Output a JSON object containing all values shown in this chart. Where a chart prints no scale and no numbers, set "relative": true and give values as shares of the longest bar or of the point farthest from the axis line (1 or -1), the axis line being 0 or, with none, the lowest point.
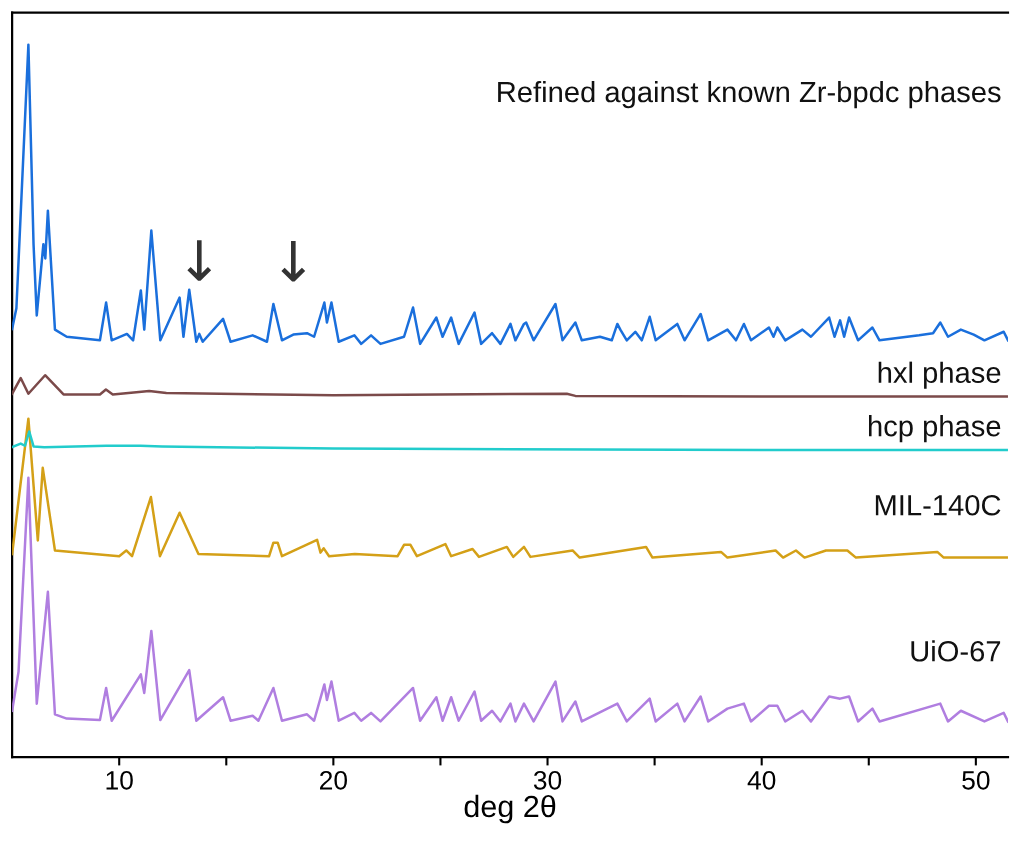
{
  "chart_data": {
    "type": "line",
    "relative": true,
    "title": "Refined against known Zr-bpdc phases",
    "xlabel": "deg 2θ",
    "xlim": [
      5.0,
      51.5
    ],
    "xticks": [
      10,
      {
        "value": 15,
        "label": null
      },
      20,
      {
        "value": 25,
        "label": null
      },
      30,
      {
        "value": 35,
        "label": null
      },
      40,
      {
        "value": 45,
        "label": null
      },
      50
    ],
    "tick_labels": "x",
    "grid": false,
    "legend": false,
    "marker": "none",
    "line_style": "solid",
    "annotations": [
      {
        "text": "↓",
        "x": 13.74,
        "y": 0.594
      },
      {
        "text": "↓",
        "x": 18.13,
        "y": 0.593
      }
    ],
    "series": [
      {
        "color": "#1a6fdc",
        "x": [
          5.0,
          5.2,
          5.76,
          6.0,
          6.15,
          6.46,
          6.55,
          6.67,
          7.0,
          7.55,
          9.1,
          9.39,
          9.65,
          10.36,
          10.65,
          11.01,
          11.17,
          11.5,
          11.92,
          12.82,
          13.0,
          13.27,
          13.6,
          13.74,
          13.9,
          14.85,
          15.2,
          16.23,
          16.9,
          17.2,
          17.6,
          18.13,
          18.77,
          19.1,
          19.58,
          19.7,
          19.91,
          20.25,
          20.98,
          21.3,
          21.76,
          22.2,
          23.3,
          23.72,
          24.05,
          24.81,
          25.1,
          25.5,
          25.85,
          26.59,
          26.9,
          27.41,
          27.8,
          28.27,
          28.5,
          28.9,
          29.0,
          29.35,
          30.37,
          30.7,
          31.3,
          31.6,
          32.45,
          33.0,
          33.26,
          33.4,
          33.7,
          34.1,
          34.4,
          34.77,
          35.05,
          36.06,
          36.4,
          37.15,
          37.5,
          38.4,
          38.8,
          39.17,
          39.5,
          40.34,
          40.55,
          40.73,
          41.1,
          41.9,
          42.3,
          43.15,
          43.4,
          43.66,
          43.85,
          44.08,
          44.5,
          45.17,
          45.5,
          47.35,
          48.0,
          48.34,
          48.7,
          49.3,
          49.9,
          50.4,
          51.3,
          51.5
        ],
        "values": [
          0.601,
          0.63,
          1.0,
          0.72,
          0.62,
          0.72,
          0.7,
          0.767,
          0.6,
          0.59,
          0.585,
          0.638,
          0.585,
          0.594,
          0.585,
          0.655,
          0.6,
          0.739,
          0.585,
          0.645,
          0.59,
          0.656,
          0.583,
          0.594,
          0.583,
          0.615,
          0.583,
          0.592,
          0.583,
          0.636,
          0.585,
          0.593,
          0.595,
          0.59,
          0.638,
          0.61,
          0.638,
          0.583,
          0.592,
          0.58,
          0.592,
          0.58,
          0.59,
          0.631,
          0.58,
          0.617,
          0.59,
          0.617,
          0.58,
          0.624,
          0.58,
          0.595,
          0.58,
          0.608,
          0.585,
          0.608,
          0.61,
          0.585,
          0.636,
          0.585,
          0.61,
          0.585,
          0.59,
          0.585,
          0.608,
          0.6,
          0.585,
          0.597,
          0.585,
          0.618,
          0.585,
          0.608,
          0.585,
          0.622,
          0.585,
          0.6,
          0.585,
          0.608,
          0.585,
          0.603,
          0.59,
          0.603,
          0.585,
          0.6,
          0.59,
          0.617,
          0.59,
          0.613,
          0.59,
          0.617,
          0.585,
          0.603,
          0.585,
          0.592,
          0.595,
          0.61,
          0.59,
          0.6,
          0.593,
          0.585,
          0.597,
          0.585
        ]
      },
      {
        "name": "hxl phase",
        "color": "#7b4a4a",
        "x": [
          5.0,
          5.4,
          5.76,
          6.54,
          7.4,
          9.1,
          9.38,
          9.7,
          10.8,
          11.4,
          12.2,
          20.0,
          30.9,
          31.3,
          40.0,
          51.5
        ],
        "values": [
          0.51,
          0.532,
          0.51,
          0.536,
          0.509,
          0.509,
          0.516,
          0.509,
          0.512,
          0.514,
          0.511,
          0.508,
          0.51,
          0.507,
          0.506,
          0.506
        ]
      },
      {
        "name": "hcp phase",
        "color": "#22cccc",
        "x": [
          5.0,
          5.4,
          5.6,
          5.8,
          6.0,
          6.5,
          9.4,
          11.0,
          12.0,
          20.0,
          40.0,
          51.5
        ],
        "values": [
          0.435,
          0.44,
          0.437,
          0.457,
          0.436,
          0.435,
          0.437,
          0.437,
          0.436,
          0.433,
          0.431,
          0.431
        ]
      },
      {
        "name": "MIL-140C",
        "color": "#d4a017",
        "x": [
          5.0,
          5.76,
          6.2,
          6.43,
          7.0,
          10.0,
          10.33,
          10.6,
          11.48,
          11.9,
          12.82,
          13.7,
          17.0,
          17.2,
          17.4,
          17.6,
          19.24,
          19.4,
          19.55,
          19.8,
          21.0,
          23.0,
          23.3,
          23.6,
          23.9,
          25.23,
          25.5,
          26.5,
          26.8,
          28.1,
          28.4,
          28.9,
          29.2,
          31.17,
          31.5,
          34.6,
          34.9,
          38.1,
          38.4,
          40.65,
          41.0,
          41.6,
          42.0,
          43.0,
          44.0,
          44.4,
          48.2,
          48.5,
          51.5
        ],
        "values": [
          0.285,
          0.475,
          0.304,
          0.406,
          0.29,
          0.282,
          0.29,
          0.282,
          0.365,
          0.282,
          0.343,
          0.285,
          0.282,
          0.301,
          0.301,
          0.282,
          0.305,
          0.287,
          0.293,
          0.282,
          0.285,
          0.282,
          0.298,
          0.298,
          0.282,
          0.299,
          0.282,
          0.292,
          0.281,
          0.295,
          0.281,
          0.295,
          0.281,
          0.29,
          0.28,
          0.295,
          0.28,
          0.288,
          0.28,
          0.29,
          0.28,
          0.29,
          0.28,
          0.29,
          0.29,
          0.28,
          0.288,
          0.28,
          0.28
        ]
      },
      {
        "name": "UiO-67",
        "color": "#b07ee0",
        "x": [
          5.0,
          5.3,
          5.76,
          6.15,
          6.67,
          7.0,
          7.55,
          9.1,
          9.39,
          9.65,
          11.01,
          11.17,
          11.5,
          11.92,
          13.27,
          13.6,
          14.85,
          15.2,
          16.23,
          16.5,
          17.2,
          17.6,
          18.77,
          19.1,
          19.58,
          19.7,
          19.91,
          20.25,
          20.98,
          21.3,
          21.76,
          22.2,
          23.72,
          24.05,
          24.81,
          25.1,
          25.5,
          25.85,
          26.59,
          26.9,
          27.41,
          27.8,
          28.27,
          28.5,
          28.9,
          29.35,
          30.37,
          30.7,
          31.3,
          31.6,
          33.26,
          33.7,
          34.77,
          35.05,
          36.06,
          36.4,
          37.15,
          37.5,
          38.4,
          39.17,
          39.5,
          40.34,
          40.73,
          41.1,
          41.9,
          42.3,
          43.15,
          43.66,
          44.08,
          44.5,
          45.17,
          45.5,
          48.34,
          48.7,
          49.3,
          50.4,
          51.3,
          51.5
        ],
        "values": [
          0.065,
          0.12,
          0.392,
          0.075,
          0.232,
          0.06,
          0.054,
          0.052,
          0.097,
          0.051,
          0.116,
          0.09,
          0.177,
          0.052,
          0.122,
          0.051,
          0.084,
          0.051,
          0.058,
          0.051,
          0.097,
          0.051,
          0.06,
          0.051,
          0.102,
          0.08,
          0.106,
          0.051,
          0.062,
          0.051,
          0.062,
          0.05,
          0.097,
          0.051,
          0.084,
          0.051,
          0.084,
          0.051,
          0.092,
          0.051,
          0.065,
          0.05,
          0.075,
          0.05,
          0.075,
          0.05,
          0.106,
          0.05,
          0.078,
          0.05,
          0.075,
          0.05,
          0.082,
          0.05,
          0.075,
          0.05,
          0.085,
          0.05,
          0.068,
          0.075,
          0.05,
          0.072,
          0.072,
          0.05,
          0.065,
          0.05,
          0.085,
          0.082,
          0.085,
          0.05,
          0.068,
          0.05,
          0.075,
          0.05,
          0.065,
          0.05,
          0.062,
          0.05
        ]
      }
    ]
  }
}
